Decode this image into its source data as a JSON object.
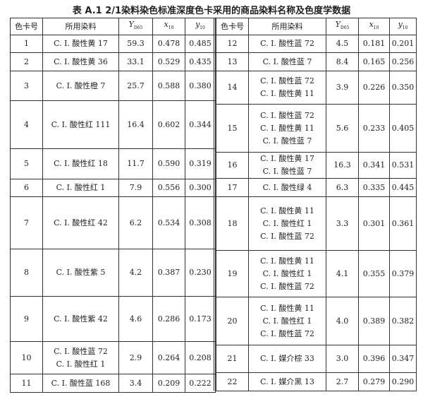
{
  "title": "表 A.1  2/1染料染色标准深度色卡采用的商品染料名称及色度学数据",
  "headers": [
    {
      "main": "色卡号",
      "sub": ""
    },
    {
      "main": "所用染料",
      "sub": ""
    },
    {
      "main": "Y",
      "sub": "D65"
    },
    {
      "main": "x",
      "sub": "10"
    },
    {
      "main": "y",
      "sub": "10"
    }
  ],
  "left_rows": [
    {
      "no": "1",
      "dyes": [
        "C. I. 酸性黄 17"
      ],
      "Y": "59.3",
      "x": "0.478",
      "y": "0.485"
    },
    {
      "no": "2",
      "dyes": [
        "C. I. 酸性黄 36"
      ],
      "Y": "33.1",
      "x": "0.529",
      "y": "0.435"
    },
    {
      "no": "3",
      "dyes": [
        "C. I. 酸性橙 7"
      ],
      "Y": "25.7",
      "x": "0.588",
      "y": "0.380"
    },
    {
      "no": "4",
      "dyes": [
        "C. I. 酸性红 111"
      ],
      "Y": "16.4",
      "x": "0.602",
      "y": "0.344"
    },
    {
      "no": "5",
      "dyes": [
        "C. I. 酸性红 18"
      ],
      "Y": "11.7",
      "x": "0.590",
      "y": "0.319"
    },
    {
      "no": "6",
      "dyes": [
        "C. I. 酸性红 1"
      ],
      "Y": "7.9",
      "x": "0.556",
      "y": "0.300"
    },
    {
      "no": "7",
      "dyes": [
        "C. I. 酸性红 42"
      ],
      "Y": "6.2",
      "x": "0.534",
      "y": "0.308"
    },
    {
      "no": "8",
      "dyes": [
        "C. I. 酸性紫 5"
      ],
      "Y": "4.2",
      "x": "0.387",
      "y": "0.230"
    },
    {
      "no": "9",
      "dyes": [
        "C. I. 酸性紫 42"
      ],
      "Y": "4.6",
      "x": "0.286",
      "y": "0.173"
    },
    {
      "no": "10",
      "dyes": [
        "C. I. 酸性蓝 72",
        "C. I. 酸性红 1"
      ],
      "Y": "2.9",
      "x": "0.264",
      "y": "0.208"
    },
    {
      "no": "11",
      "dyes": [
        "C. I. 酸性蓝 168"
      ],
      "Y": "3.4",
      "x": "0.209",
      "y": "0.222"
    }
  ],
  "right_rows": [
    {
      "no": "12",
      "dyes": [
        "C. I. 酸性蓝 72"
      ],
      "Y": "4.5",
      "x": "0.181",
      "y": "0.201"
    },
    {
      "no": "13",
      "dyes": [
        "C. I. 酸性蓝 7"
      ],
      "Y": "8.4",
      "x": "0.165",
      "y": "0.256"
    },
    {
      "no": "14",
      "dyes": [
        "C. I. 酸性蓝 72",
        "C. I. 酸性黄 11"
      ],
      "Y": "3.9",
      "x": "0.226",
      "y": "0.350"
    },
    {
      "no": "15",
      "dyes": [
        "C. I. 酸性蓝 72",
        "C. I. 酸性黄 11",
        "C. I. 酸性蓝 7"
      ],
      "Y": "5.6",
      "x": "0.233",
      "y": "0.405"
    },
    {
      "no": "16",
      "dyes": [
        "C. I. 酸性黄 17",
        "C. I. 酸性蓝 7"
      ],
      "Y": "16.3",
      "x": "0.341",
      "y": "0.531"
    },
    {
      "no": "17",
      "dyes": [
        "C. I. 酸性绿 4"
      ],
      "Y": "6.3",
      "x": "0.335",
      "y": "0.445"
    },
    {
      "no": "18",
      "dyes": [
        "C. I. 酸性黄 11",
        "C. I. 酸性红 1",
        "C. I. 酸性蓝 72"
      ],
      "Y": "3.3",
      "x": "0.301",
      "y": "0.361"
    },
    {
      "no": "19",
      "dyes": [
        "C. I. 酸性黄 11",
        "C. I. 酸性红 1",
        "C. I. 酸性蓝 72"
      ],
      "Y": "4.1",
      "x": "0.355",
      "y": "0.379"
    },
    {
      "no": "20",
      "dyes": [
        "C. I. 酸性黄 11",
        "C. I. 酸性红 1",
        "C. I. 酸性蓝 72"
      ],
      "Y": "4.0",
      "x": "0.389",
      "y": "0.382"
    },
    {
      "no": "21",
      "dyes": [
        "C. I. 媒介棕 33"
      ],
      "Y": "3.0",
      "x": "0.396",
      "y": "0.347"
    },
    {
      "no": "22",
      "dyes": [
        "C. I. 媒介黑 13"
      ],
      "Y": "2.7",
      "x": "0.279",
      "y": "0.290"
    }
  ]
}
